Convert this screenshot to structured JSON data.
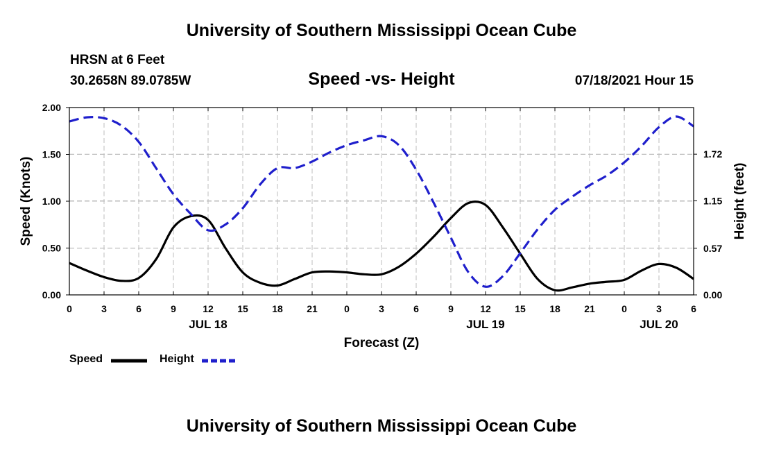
{
  "header": {
    "top_title": "University of Southern Mississippi Ocean Cube",
    "station": "HRSN at 6 Feet",
    "coords": "30.2658N  89.0785W",
    "subtitle": "Speed -vs- Height",
    "datetime": "07/18/2021 Hour 15",
    "bottom_title": "University of Southern Mississippi Ocean Cube"
  },
  "legend": {
    "speed_label": "Speed",
    "height_label": "Height"
  },
  "colors": {
    "speed": "#000000",
    "height": "#1f1fcc",
    "grid": "#bdbdbd"
  },
  "chart_data": {
    "type": "line",
    "title": "Speed -vs- Height",
    "xlabel": "Forecast (Z)",
    "ylabel": "Speed (Knots)",
    "y2label": "Height (feet)",
    "xlim": [
      0,
      54
    ],
    "ylim": [
      0,
      2.0
    ],
    "y2lim": [
      0,
      2.29
    ],
    "x_ticks": [
      0,
      3,
      6,
      9,
      12,
      15,
      18,
      21,
      24,
      27,
      30,
      33,
      36,
      39,
      42,
      45,
      48,
      51,
      54
    ],
    "x_tick_labels": [
      "0",
      "3",
      "6",
      "9",
      "12",
      "15",
      "18",
      "21",
      "0",
      "3",
      "6",
      "9",
      "12",
      "15",
      "18",
      "21",
      "0",
      "3",
      "6"
    ],
    "date_labels": [
      {
        "x": 12,
        "label": "JUL 18"
      },
      {
        "x": 36,
        "label": "JUL 19"
      },
      {
        "x": 51,
        "label": "JUL 20"
      }
    ],
    "y_ticks": [
      0,
      0.5,
      1.0,
      1.5,
      2.0
    ],
    "y_tick_labels": [
      "0.00",
      "0.50",
      "1.00",
      "1.50",
      "2.00"
    ],
    "y2_ticks": [
      0,
      0.57,
      1.15,
      1.72
    ],
    "y2_tick_labels": [
      "0.00",
      "0.57",
      "1.15",
      "1.72"
    ],
    "grid": true,
    "legend_position": "bottom-left",
    "series": [
      {
        "name": "Speed",
        "axis": "left",
        "style": "solid",
        "x": [
          0,
          1.5,
          3,
          4.5,
          6,
          7.5,
          9,
          10.5,
          12,
          13.5,
          15,
          16.5,
          18,
          19.5,
          21,
          22.5,
          24,
          25.5,
          27,
          28.5,
          30,
          31.5,
          33,
          34.5,
          36,
          37.5,
          39,
          40.5,
          42,
          43.5,
          45,
          46.5,
          48,
          49.5,
          51,
          52.5,
          54
        ],
        "values": [
          0.34,
          0.26,
          0.19,
          0.15,
          0.18,
          0.38,
          0.72,
          0.84,
          0.8,
          0.5,
          0.24,
          0.13,
          0.1,
          0.17,
          0.24,
          0.25,
          0.24,
          0.22,
          0.22,
          0.3,
          0.44,
          0.62,
          0.82,
          0.98,
          0.96,
          0.72,
          0.44,
          0.17,
          0.05,
          0.08,
          0.12,
          0.14,
          0.16,
          0.26,
          0.33,
          0.29,
          0.17
        ]
      },
      {
        "name": "Height",
        "axis": "right",
        "style": "dashed",
        "x": [
          0,
          1.5,
          3,
          4.5,
          6,
          7.5,
          9,
          10.5,
          12,
          13.5,
          15,
          16.5,
          18,
          19.5,
          21,
          22.5,
          24,
          25.5,
          27,
          28.5,
          30,
          31.5,
          33,
          34.5,
          36,
          37.5,
          39,
          40.5,
          42,
          43.5,
          45,
          46.5,
          48,
          49.5,
          51,
          52.5,
          54
        ],
        "values": [
          2.12,
          2.17,
          2.16,
          2.07,
          1.87,
          1.55,
          1.23,
          0.99,
          0.79,
          0.86,
          1.06,
          1.35,
          1.55,
          1.55,
          1.63,
          1.74,
          1.83,
          1.89,
          1.94,
          1.83,
          1.53,
          1.13,
          0.7,
          0.28,
          0.1,
          0.23,
          0.51,
          0.8,
          1.04,
          1.2,
          1.34,
          1.46,
          1.62,
          1.82,
          2.05,
          2.18,
          2.06
        ]
      }
    ]
  }
}
